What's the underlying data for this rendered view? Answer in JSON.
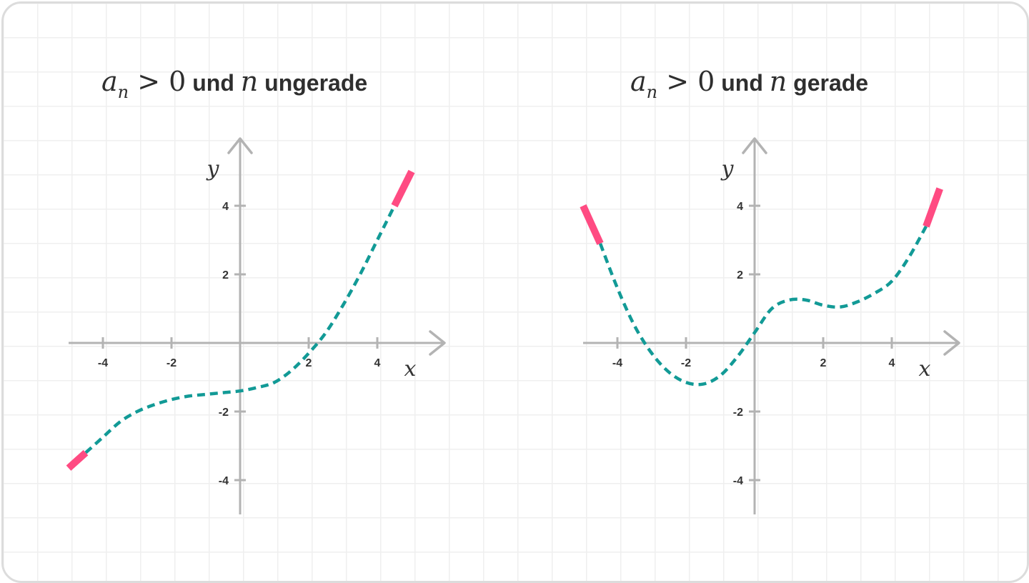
{
  "chart_data": [
    {
      "type": "line",
      "title": {
        "lhs": "a",
        "sub": "n",
        "op": ">",
        "rhs": "0",
        "und": "und",
        "var": "n",
        "parity": "ungerade"
      },
      "xlabel": "x",
      "ylabel": "y",
      "x_ticks": [
        -4,
        -2,
        2,
        4
      ],
      "y_ticks": [
        4,
        2,
        -2,
        -4
      ],
      "xlim": [
        -5,
        5.5
      ],
      "ylim": [
        -5,
        5.5
      ],
      "series": [
        {
          "x": [
            -5.0,
            -4.5,
            -4.0,
            -3.5,
            -3.0,
            -2.5,
            -2.0,
            -1.5,
            -1.0,
            -0.5,
            0.0,
            0.5,
            1.0,
            1.5,
            2.0,
            2.5,
            3.0,
            3.5,
            4.0,
            4.5,
            5.0
          ],
          "y": [
            -3.65,
            -3.2,
            -2.75,
            -2.3,
            -2.0,
            -1.8,
            -1.65,
            -1.55,
            -1.5,
            -1.45,
            -1.4,
            -1.3,
            -1.15,
            -0.8,
            -0.3,
            0.3,
            1.1,
            2.0,
            3.0,
            4.0,
            5.0
          ]
        }
      ],
      "end_behavior": {
        "left": "y → −∞",
        "right": "y → +∞"
      },
      "colors": {
        "curve": "#129a96",
        "ends": "#ff4b82",
        "axis": "#b3b3b3"
      }
    },
    {
      "type": "line",
      "title": {
        "lhs": "a",
        "sub": "n",
        "op": ">",
        "rhs": "0",
        "und": "und",
        "var": "n",
        "parity": "gerade"
      },
      "xlabel": "x",
      "ylabel": "y",
      "x_ticks": [
        -4,
        -2,
        2,
        4
      ],
      "y_ticks": [
        4,
        2,
        -2,
        -4
      ],
      "xlim": [
        -5,
        5.5
      ],
      "ylim": [
        -5,
        5.5
      ],
      "series": [
        {
          "x": [
            -5.0,
            -4.5,
            -4.0,
            -3.5,
            -3.0,
            -2.5,
            -2.0,
            -1.5,
            -1.0,
            -0.5,
            0.0,
            0.5,
            1.0,
            1.5,
            2.0,
            2.5,
            3.0,
            3.5,
            4.0,
            4.5,
            5.0,
            5.4
          ],
          "y": [
            4.0,
            2.9,
            1.6,
            0.5,
            -0.3,
            -0.85,
            -1.15,
            -1.2,
            -0.95,
            -0.4,
            0.3,
            1.0,
            1.25,
            1.25,
            1.1,
            1.05,
            1.2,
            1.45,
            1.8,
            2.5,
            3.4,
            4.5
          ]
        }
      ],
      "end_behavior": {
        "left": "y → +∞",
        "right": "y → +∞"
      },
      "colors": {
        "curve": "#129a96",
        "ends": "#ff4b82",
        "axis": "#b3b3b3"
      }
    }
  ]
}
